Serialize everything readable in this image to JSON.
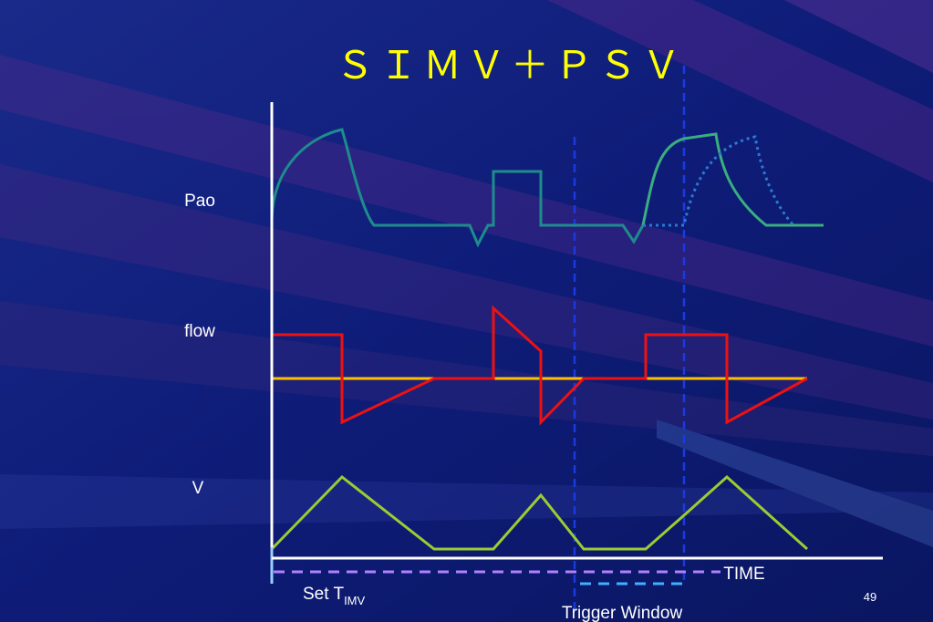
{
  "title": "ＳＩＭＶ＋ＰＳＶ",
  "labels": {
    "pao": "Pao",
    "flow": "flow",
    "volume": "V",
    "time": "TIME"
  },
  "set_t": {
    "text": "Set T",
    "subscript": "IMV"
  },
  "trigger_window": "Trigger Window",
  "page_number": "49"
}
